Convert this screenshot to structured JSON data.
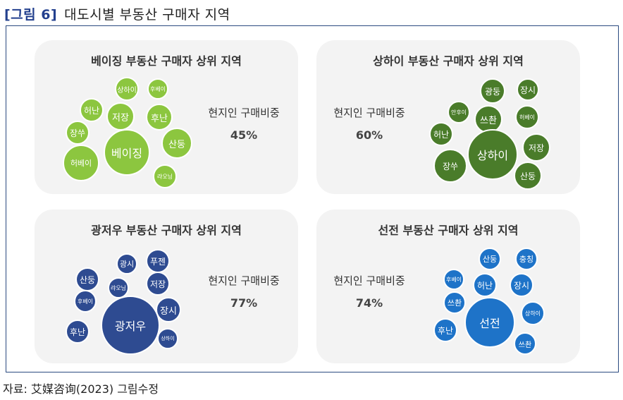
{
  "figure": {
    "number": "[그림 6]",
    "title": "대도시별 부동산 구매자 지역"
  },
  "colors": {
    "light_green": "#8cc63f",
    "dark_green": "#4a7c2a",
    "blue": "#2e4b91",
    "sky_blue": "#1e73c8"
  },
  "panels": [
    {
      "title": "베이징 부동산 구매자 상위 지역",
      "stat_label": "현지인 구매비중",
      "stat_value": "45%",
      "bubbles": [
        "상하이",
        "후베이",
        "허난",
        "저장",
        "후난",
        "장쑤",
        "산둥",
        "베이징",
        "허베이",
        "랴오닝"
      ]
    },
    {
      "title": "상하이 부동산 구매자 상위 지역",
      "stat_label": "현지인 구매비중",
      "stat_value": "60%",
      "bubbles": [
        "광둥",
        "장시",
        "안후이",
        "쓰촨",
        "허베이",
        "허난",
        "저장",
        "상하이",
        "장쑤",
        "산둥"
      ]
    },
    {
      "title": "광저우 부동산 구매자 상위 지역",
      "stat_label": "현지인 구매비중",
      "stat_value": "77%",
      "bubbles": [
        "광시",
        "푸젠",
        "산둥",
        "랴오닝",
        "저장",
        "후베이",
        "장시",
        "광저우",
        "후난",
        "상하이"
      ]
    },
    {
      "title": "선전 부동산 구매자 상위 지역",
      "stat_label": "현지인 구매비중",
      "stat_value": "74%",
      "bubbles": [
        "산둥",
        "충칭",
        "후베이",
        "허난",
        "장시",
        "쓰촨",
        "상하이",
        "선전",
        "후난",
        "쓰촨"
      ]
    }
  ],
  "source": "자료: 艾媒咨询(2023) 그림수정"
}
